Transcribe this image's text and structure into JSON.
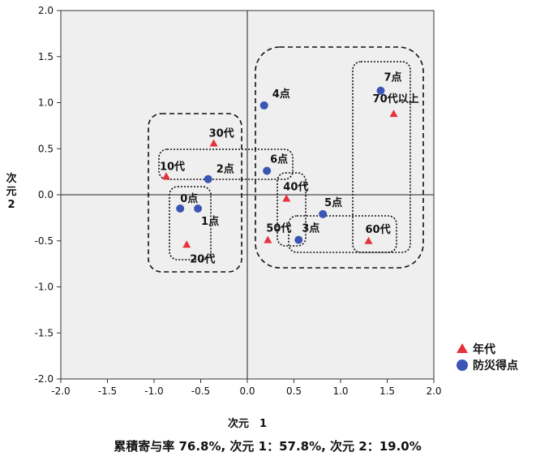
{
  "chart_data": {
    "type": "scatter",
    "xlabel": "次元　1",
    "ylabel_line1": "次",
    "ylabel_line2": "元",
    "ylabel_line3": "2",
    "xlim": [
      -2.0,
      2.0
    ],
    "ylim": [
      -2.0,
      2.0
    ],
    "xticks": [
      "-2.0",
      "-1.5",
      "-1.0",
      "-0.5",
      "0.0",
      "0.5",
      "1.0",
      "1.5",
      "2.0"
    ],
    "yticks": [
      "2.0",
      "1.5",
      "1.0",
      "0.5",
      "0.0",
      "-0.5",
      "-1.0",
      "-1.5",
      "-2.0"
    ],
    "legend_position": "right",
    "caption": "累積寄与率 76.8%, 次元 1：57.8%, 次元 2：19.0%",
    "colors": {
      "age": "#e8313b",
      "score": "#3b55b5",
      "plot_bg": "#efefef"
    },
    "series": [
      {
        "name": "年代",
        "marker": "triangle",
        "points": [
          {
            "label": "10代",
            "x": -0.87,
            "y": 0.2
          },
          {
            "label": "20代",
            "x": -0.65,
            "y": -0.54
          },
          {
            "label": "30代",
            "x": -0.36,
            "y": 0.56
          },
          {
            "label": "40代",
            "x": 0.42,
            "y": -0.04
          },
          {
            "label": "50代",
            "x": 0.22,
            "y": -0.49
          },
          {
            "label": "60代",
            "x": 1.3,
            "y": -0.5
          },
          {
            "label": "70代以上",
            "x": 1.57,
            "y": 0.88
          }
        ]
      },
      {
        "name": "防災得点",
        "marker": "circle",
        "points": [
          {
            "label": "0点",
            "x": -0.72,
            "y": -0.15
          },
          {
            "label": "1点",
            "x": -0.53,
            "y": -0.15
          },
          {
            "label": "2点",
            "x": -0.42,
            "y": 0.17
          },
          {
            "label": "3点",
            "x": 0.55,
            "y": -0.49
          },
          {
            "label": "4点",
            "x": 0.18,
            "y": 0.97
          },
          {
            "label": "5点",
            "x": 0.81,
            "y": -0.21
          },
          {
            "label": "6点",
            "x": 0.21,
            "y": 0.26
          },
          {
            "label": "7点",
            "x": 1.43,
            "y": 1.13
          }
        ]
      }
    ]
  }
}
